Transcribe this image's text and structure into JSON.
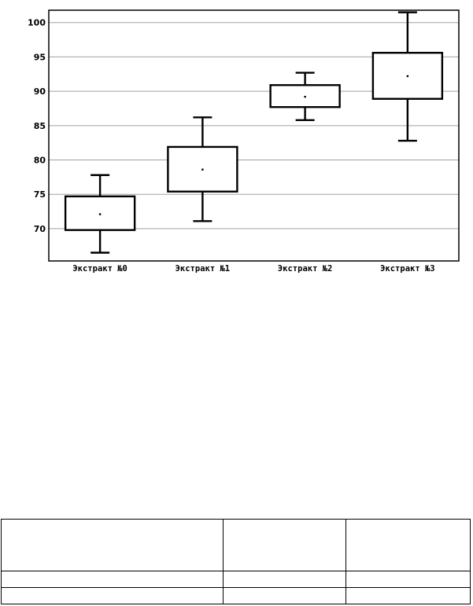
{
  "chart_data": {
    "type": "boxplot",
    "title": "",
    "xlabel": "",
    "ylabel": "",
    "ylim": [
      65.3,
      101.8
    ],
    "yticks": [
      70,
      75,
      80,
      85,
      90,
      95,
      100
    ],
    "grid": true,
    "categories": [
      "Экстракт №0",
      "Экстракт №1",
      "Экстракт №2",
      "Экстракт №3"
    ],
    "boxes": [
      {
        "whisker_low": 66.5,
        "q1": 69.8,
        "mean": 72.1,
        "q3": 74.7,
        "whisker_high": 77.8
      },
      {
        "whisker_low": 71.1,
        "q1": 75.4,
        "mean": 78.6,
        "q3": 81.9,
        "whisker_high": 86.2
      },
      {
        "whisker_low": 85.8,
        "q1": 87.7,
        "mean": 89.2,
        "q3": 90.9,
        "whisker_high": 92.7
      },
      {
        "whisker_low": 82.8,
        "q1": 88.9,
        "mean": 92.2,
        "q3": 95.6,
        "whisker_high": 101.5
      }
    ]
  },
  "table": {
    "rows": [
      [
        "",
        "",
        ""
      ],
      [
        "",
        "",
        ""
      ],
      [
        "",
        "",
        ""
      ]
    ]
  }
}
